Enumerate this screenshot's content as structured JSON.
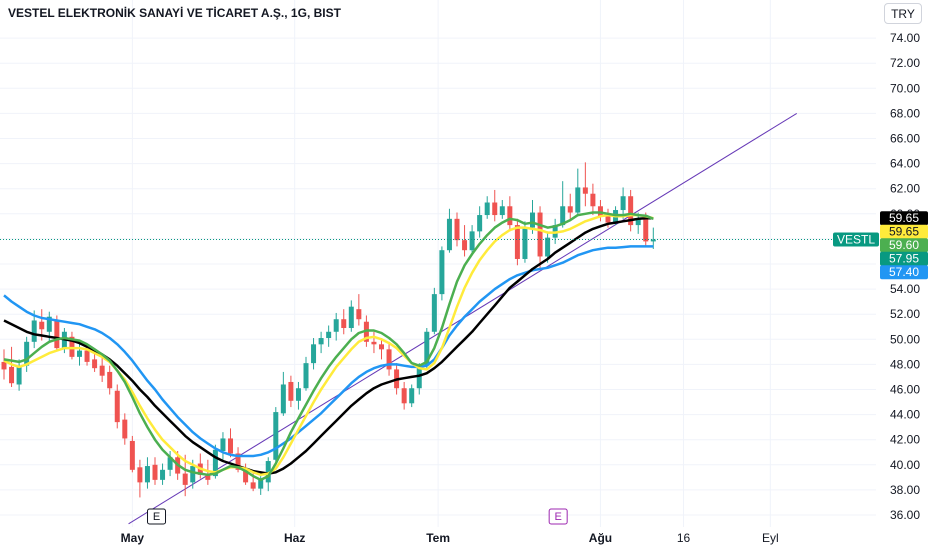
{
  "header": {
    "title": "VESTEL ELEKTRONİK SANAYİ VE TİCARET A.Ş., 1G, BIST",
    "currency": "TRY"
  },
  "chart_data": {
    "type": "candlestick",
    "ylim": [
      35,
      76
    ],
    "y_ticks": [
      "74.00",
      "72.00",
      "70.00",
      "68.00",
      "66.00",
      "64.00",
      "62.00",
      "60.00",
      "58.00",
      "56.00",
      "54.00",
      "52.00",
      "50.00",
      "48.00",
      "46.00",
      "44.00",
      "42.00",
      "40.00",
      "38.00",
      "36.00"
    ],
    "x_tick_labels": [
      "May",
      "Haz",
      "Tem",
      "Ağu",
      "16",
      "Eyl"
    ],
    "bold_x_ticks": [
      "May",
      "Haz",
      "Tem",
      "Ağu"
    ],
    "colors": {
      "up": "#26a69a",
      "down": "#ef5350",
      "ema_fast": "#4caf50",
      "ema_mid": "#ffeb3b",
      "ema_slow": "#000000",
      "ema_long": "#2196f3",
      "trendline": "#673ab7",
      "last_price": "#089981"
    },
    "candles": [
      {
        "o": 48.2,
        "h": 49.2,
        "l": 46.8,
        "c": 47.6
      },
      {
        "o": 47.8,
        "h": 49.4,
        "l": 46.2,
        "c": 46.5
      },
      {
        "o": 46.4,
        "h": 48.4,
        "l": 45.9,
        "c": 47.9
      },
      {
        "o": 47.9,
        "h": 50.2,
        "l": 47.4,
        "c": 49.8
      },
      {
        "o": 49.8,
        "h": 52.3,
        "l": 49.3,
        "c": 51.5
      },
      {
        "o": 51.4,
        "h": 52.4,
        "l": 49.9,
        "c": 50.8
      },
      {
        "o": 50.6,
        "h": 52.2,
        "l": 49.8,
        "c": 51.8
      },
      {
        "o": 51.5,
        "h": 51.9,
        "l": 49.1,
        "c": 49.3
      },
      {
        "o": 49.3,
        "h": 50.9,
        "l": 48.9,
        "c": 50.6
      },
      {
        "o": 50.2,
        "h": 50.6,
        "l": 48.4,
        "c": 48.6
      },
      {
        "o": 48.6,
        "h": 49.6,
        "l": 47.9,
        "c": 49.1
      },
      {
        "o": 49.1,
        "h": 49.4,
        "l": 47.9,
        "c": 48.2
      },
      {
        "o": 48.4,
        "h": 49.0,
        "l": 47.4,
        "c": 47.7
      },
      {
        "o": 47.9,
        "h": 48.6,
        "l": 46.6,
        "c": 47.1
      },
      {
        "o": 47.4,
        "h": 47.9,
        "l": 45.6,
        "c": 46.1
      },
      {
        "o": 45.9,
        "h": 46.4,
        "l": 42.9,
        "c": 43.4
      },
      {
        "o": 43.6,
        "h": 44.1,
        "l": 41.6,
        "c": 42.1
      },
      {
        "o": 41.9,
        "h": 42.3,
        "l": 39.4,
        "c": 39.6
      },
      {
        "o": 39.8,
        "h": 40.4,
        "l": 37.4,
        "c": 38.6
      },
      {
        "o": 38.6,
        "h": 40.6,
        "l": 38.1,
        "c": 39.9
      },
      {
        "o": 40.0,
        "h": 40.6,
        "l": 38.4,
        "c": 38.8
      },
      {
        "o": 38.8,
        "h": 40.1,
        "l": 38.4,
        "c": 39.6
      },
      {
        "o": 39.6,
        "h": 41.1,
        "l": 39.1,
        "c": 40.6
      },
      {
        "o": 40.6,
        "h": 41.1,
        "l": 38.8,
        "c": 39.3
      },
      {
        "o": 39.3,
        "h": 40.8,
        "l": 37.5,
        "c": 38.4
      },
      {
        "o": 38.6,
        "h": 40.4,
        "l": 38.1,
        "c": 39.9
      },
      {
        "o": 40.1,
        "h": 40.9,
        "l": 38.9,
        "c": 39.2
      },
      {
        "o": 39.2,
        "h": 40.4,
        "l": 38.4,
        "c": 38.8
      },
      {
        "o": 39.1,
        "h": 41.6,
        "l": 38.9,
        "c": 41.2
      },
      {
        "o": 41.1,
        "h": 42.6,
        "l": 40.4,
        "c": 42.1
      },
      {
        "o": 42.1,
        "h": 42.9,
        "l": 40.6,
        "c": 40.9
      },
      {
        "o": 40.9,
        "h": 41.4,
        "l": 39.4,
        "c": 39.6
      },
      {
        "o": 39.6,
        "h": 40.1,
        "l": 38.4,
        "c": 38.6
      },
      {
        "o": 38.6,
        "h": 39.4,
        "l": 37.9,
        "c": 38.1
      },
      {
        "o": 38.1,
        "h": 39.1,
        "l": 37.6,
        "c": 38.8
      },
      {
        "o": 38.6,
        "h": 40.6,
        "l": 37.9,
        "c": 40.3
      },
      {
        "o": 40.4,
        "h": 44.6,
        "l": 40.1,
        "c": 44.2
      },
      {
        "o": 44.1,
        "h": 47.4,
        "l": 43.9,
        "c": 46.4
      },
      {
        "o": 46.6,
        "h": 47.1,
        "l": 44.6,
        "c": 45.1
      },
      {
        "o": 45.1,
        "h": 46.6,
        "l": 44.4,
        "c": 46.1
      },
      {
        "o": 46.1,
        "h": 48.6,
        "l": 45.9,
        "c": 48.1
      },
      {
        "o": 48.1,
        "h": 50.1,
        "l": 47.6,
        "c": 49.6
      },
      {
        "o": 49.6,
        "h": 50.6,
        "l": 48.9,
        "c": 50.1
      },
      {
        "o": 50.1,
        "h": 51.1,
        "l": 49.4,
        "c": 50.6
      },
      {
        "o": 50.6,
        "h": 52.1,
        "l": 49.9,
        "c": 51.6
      },
      {
        "o": 51.6,
        "h": 52.4,
        "l": 50.4,
        "c": 50.9
      },
      {
        "o": 50.9,
        "h": 53.1,
        "l": 50.6,
        "c": 52.6
      },
      {
        "o": 52.4,
        "h": 53.6,
        "l": 51.1,
        "c": 51.6
      },
      {
        "o": 51.4,
        "h": 51.9,
        "l": 49.4,
        "c": 49.8
      },
      {
        "o": 49.8,
        "h": 50.6,
        "l": 48.9,
        "c": 49.6
      },
      {
        "o": 49.6,
        "h": 50.1,
        "l": 48.4,
        "c": 49.2
      },
      {
        "o": 49.2,
        "h": 49.8,
        "l": 47.1,
        "c": 47.6
      },
      {
        "o": 47.6,
        "h": 48.1,
        "l": 45.6,
        "c": 46.1
      },
      {
        "o": 46.1,
        "h": 46.6,
        "l": 44.4,
        "c": 44.9
      },
      {
        "o": 44.9,
        "h": 46.4,
        "l": 44.6,
        "c": 46.1
      },
      {
        "o": 46.1,
        "h": 48.1,
        "l": 45.6,
        "c": 47.9
      },
      {
        "o": 47.9,
        "h": 50.9,
        "l": 47.6,
        "c": 50.6
      },
      {
        "o": 50.6,
        "h": 54.1,
        "l": 50.4,
        "c": 53.6
      },
      {
        "o": 53.6,
        "h": 57.4,
        "l": 53.1,
        "c": 57.1
      },
      {
        "o": 57.1,
        "h": 60.4,
        "l": 56.9,
        "c": 59.6
      },
      {
        "o": 59.6,
        "h": 60.1,
        "l": 57.4,
        "c": 57.9
      },
      {
        "o": 57.9,
        "h": 59.1,
        "l": 56.6,
        "c": 57.1
      },
      {
        "o": 57.1,
        "h": 59.1,
        "l": 56.9,
        "c": 58.6
      },
      {
        "o": 58.6,
        "h": 60.6,
        "l": 58.1,
        "c": 59.9
      },
      {
        "o": 59.9,
        "h": 61.4,
        "l": 59.6,
        "c": 60.9
      },
      {
        "o": 60.9,
        "h": 61.9,
        "l": 59.4,
        "c": 59.9
      },
      {
        "o": 59.9,
        "h": 61.1,
        "l": 59.6,
        "c": 60.6
      },
      {
        "o": 60.6,
        "h": 61.4,
        "l": 58.6,
        "c": 59.1
      },
      {
        "o": 59.1,
        "h": 59.6,
        "l": 55.9,
        "c": 56.4
      },
      {
        "o": 56.4,
        "h": 59.4,
        "l": 56.1,
        "c": 58.9
      },
      {
        "o": 58.9,
        "h": 61.1,
        "l": 58.4,
        "c": 60.1
      },
      {
        "o": 60.1,
        "h": 60.6,
        "l": 55.6,
        "c": 56.6
      },
      {
        "o": 56.6,
        "h": 58.6,
        "l": 56.1,
        "c": 58.1
      },
      {
        "o": 58.1,
        "h": 59.6,
        "l": 57.6,
        "c": 59.1
      },
      {
        "o": 59.1,
        "h": 62.6,
        "l": 58.9,
        "c": 60.6
      },
      {
        "o": 60.6,
        "h": 61.6,
        "l": 59.6,
        "c": 60.1
      },
      {
        "o": 60.1,
        "h": 63.6,
        "l": 59.9,
        "c": 62.1
      },
      {
        "o": 62.1,
        "h": 64.1,
        "l": 60.6,
        "c": 61.6
      },
      {
        "o": 61.6,
        "h": 62.4,
        "l": 59.9,
        "c": 60.6
      },
      {
        "o": 60.6,
        "h": 61.1,
        "l": 59.4,
        "c": 59.8
      },
      {
        "o": 59.8,
        "h": 60.4,
        "l": 58.9,
        "c": 59.3
      },
      {
        "o": 59.3,
        "h": 60.6,
        "l": 59.1,
        "c": 60.3
      },
      {
        "o": 60.3,
        "h": 62.1,
        "l": 59.6,
        "c": 61.4
      },
      {
        "o": 61.4,
        "h": 61.9,
        "l": 58.6,
        "c": 59.1
      },
      {
        "o": 59.1,
        "h": 60.1,
        "l": 58.4,
        "c": 59.6
      },
      {
        "o": 59.6,
        "h": 60.1,
        "l": 57.4,
        "c": 57.8
      },
      {
        "o": 57.8,
        "h": 58.9,
        "l": 57.2,
        "c": 57.95
      }
    ],
    "ema_fast": [
      48.4,
      48.3,
      48.2,
      48.4,
      48.9,
      49.4,
      49.8,
      50.0,
      50.1,
      50.0,
      49.9,
      49.6,
      49.2,
      48.8,
      48.3,
      47.5,
      46.6,
      45.4,
      44.1,
      43.0,
      42.0,
      41.2,
      40.6,
      40.0,
      39.6,
      39.4,
      39.3,
      39.2,
      39.3,
      39.6,
      39.9,
      39.8,
      39.5,
      39.1,
      38.8,
      39.1,
      40.1,
      41.3,
      42.6,
      43.7,
      44.8,
      45.9,
      46.9,
      47.8,
      48.6,
      49.3,
      50.0,
      50.5,
      50.7,
      50.7,
      50.5,
      50.1,
      49.6,
      48.9,
      48.1,
      47.9,
      48.2,
      49.3,
      50.9,
      52.8,
      54.6,
      55.9,
      56.8,
      57.6,
      58.3,
      58.9,
      59.3,
      59.6,
      59.5,
      59.2,
      59.3,
      59.1,
      58.9,
      59.0,
      59.2,
      59.5,
      59.9,
      60.0,
      60.1,
      60.1,
      60.0,
      59.9,
      59.9,
      60.0,
      59.9,
      59.85,
      59.6
    ],
    "ema_mid": [
      48.3,
      48.0,
      47.8,
      48.0,
      48.3,
      48.6,
      48.9,
      49.1,
      49.3,
      49.3,
      49.3,
      49.2,
      48.9,
      48.6,
      48.2,
      47.5,
      46.8,
      45.8,
      44.7,
      43.7,
      42.8,
      42.0,
      41.4,
      40.8,
      40.3,
      40.0,
      39.7,
      39.5,
      39.4,
      39.6,
      39.8,
      39.8,
      39.7,
      39.4,
      39.2,
      39.3,
      39.7,
      40.6,
      41.7,
      42.8,
      43.9,
      45.0,
      46.0,
      46.9,
      47.8,
      48.5,
      49.2,
      49.8,
      50.1,
      50.2,
      50.0,
      49.7,
      49.3,
      48.7,
      48.1,
      47.7,
      47.6,
      48.1,
      49.3,
      50.9,
      52.6,
      54.1,
      55.3,
      56.3,
      57.1,
      57.8,
      58.3,
      58.7,
      58.9,
      58.9,
      58.8,
      58.7,
      58.5,
      58.5,
      58.6,
      58.8,
      59.1,
      59.4,
      59.6,
      59.8,
      59.9,
      59.8,
      59.8,
      59.9,
      59.9,
      59.8,
      59.65
    ],
    "ema_slow": [
      51.5,
      51.2,
      50.9,
      50.6,
      50.4,
      50.3,
      50.2,
      50.1,
      50.0,
      49.9,
      49.7,
      49.4,
      49.1,
      48.8,
      48.4,
      47.9,
      47.3,
      46.7,
      46.0,
      45.4,
      44.7,
      44.1,
      43.5,
      42.9,
      42.3,
      41.8,
      41.4,
      41.0,
      40.6,
      40.3,
      40.1,
      39.9,
      39.7,
      39.5,
      39.4,
      39.3,
      39.4,
      39.7,
      40.1,
      40.6,
      41.1,
      41.7,
      42.3,
      42.9,
      43.5,
      44.1,
      44.7,
      45.2,
      45.7,
      46.1,
      46.4,
      46.6,
      46.8,
      46.9,
      47.0,
      47.1,
      47.3,
      47.7,
      48.2,
      48.8,
      49.4,
      50.0,
      50.6,
      51.3,
      52.0,
      52.7,
      53.4,
      54.1,
      54.6,
      55.1,
      55.6,
      56.0,
      56.4,
      56.9,
      57.3,
      57.7,
      58.1,
      58.5,
      58.8,
      59.0,
      59.2,
      59.3,
      59.4,
      59.5,
      59.6,
      59.65,
      59.65
    ],
    "ema_long": [
      53.5,
      53.0,
      52.6,
      52.2,
      51.9,
      51.7,
      51.6,
      51.5,
      51.4,
      51.3,
      51.2,
      51.0,
      50.8,
      50.5,
      50.1,
      49.6,
      49.0,
      48.3,
      47.5,
      46.7,
      46.0,
      45.2,
      44.5,
      43.8,
      43.2,
      42.6,
      42.1,
      41.7,
      41.3,
      41.0,
      40.8,
      40.7,
      40.7,
      40.7,
      40.8,
      41.0,
      41.3,
      41.7,
      42.1,
      42.6,
      43.1,
      43.6,
      44.1,
      44.7,
      45.3,
      45.9,
      46.5,
      47.0,
      47.4,
      47.7,
      47.9,
      48.0,
      48.0,
      47.9,
      47.8,
      47.8,
      47.9,
      48.4,
      49.3,
      50.3,
      51.1,
      51.8,
      52.4,
      53.0,
      53.5,
      54.0,
      54.4,
      54.8,
      55.1,
      55.3,
      55.5,
      55.6,
      55.7,
      55.9,
      56.1,
      56.4,
      56.7,
      56.9,
      57.1,
      57.2,
      57.3,
      57.3,
      57.35,
      57.4,
      57.4,
      57.4,
      57.4
    ],
    "trendline": {
      "from_bar": 16.5,
      "from_value": 35.3,
      "to_bar": 105,
      "to_value": 68.0
    },
    "price_tags": [
      {
        "value": 59.65,
        "label": "59.65",
        "bg": "#000000",
        "fg": "#ffffff"
      },
      {
        "value": 59.65,
        "label": "59.65",
        "bg": "#ffeb3b",
        "fg": "#131722"
      },
      {
        "value": 59.6,
        "label": "59.60",
        "bg": "#4caf50",
        "fg": "#ffffff"
      },
      {
        "value": 57.95,
        "label": "57.95",
        "bg": "#089981",
        "fg": "#ffffff"
      },
      {
        "value": 57.4,
        "label": "57.40",
        "bg": "#2196f3",
        "fg": "#ffffff"
      }
    ],
    "symbol_tag": "VESTL",
    "last_price": 57.95,
    "earnings_badges": [
      {
        "label": "E",
        "bar": 20.2,
        "color": "#131722"
      },
      {
        "label": "E",
        "bar": 73.4,
        "color": "#9c27b0"
      }
    ]
  }
}
